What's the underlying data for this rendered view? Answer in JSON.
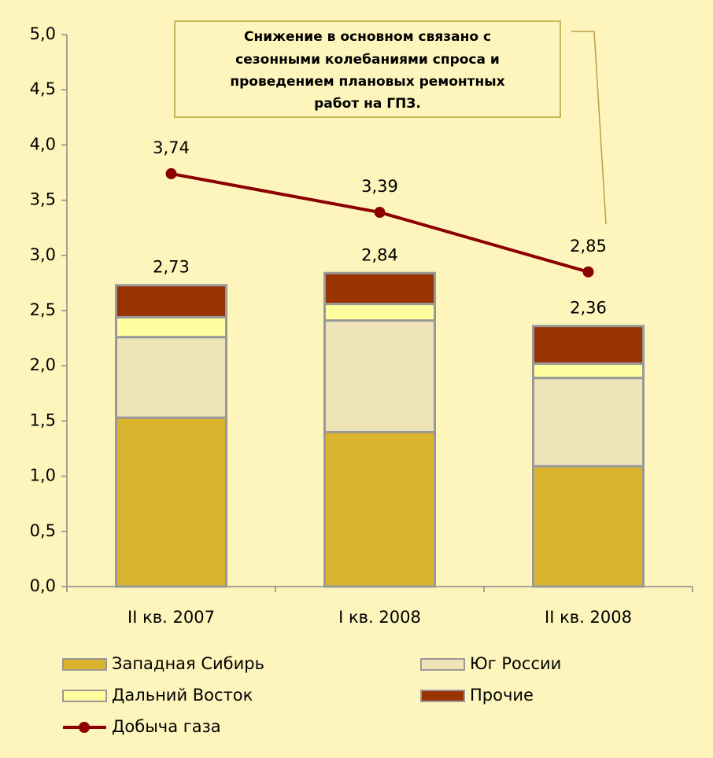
{
  "chart_data": {
    "type": "bar",
    "categories": [
      "II кв. 2007",
      "I кв. 2008",
      "II кв. 2008"
    ],
    "series": [
      {
        "name": "Западная Сибирь",
        "color": "#d9b42c",
        "values": [
          1.53,
          1.4,
          1.09
        ]
      },
      {
        "name": "Юг России",
        "color": "#efe4b8",
        "values": [
          0.73,
          1.01,
          0.8
        ]
      },
      {
        "name": "Дальний Восток",
        "color": "#ffffa0",
        "values": [
          0.18,
          0.15,
          0.13
        ]
      },
      {
        "name": "Прочие",
        "color": "#993300",
        "values": [
          0.29,
          0.28,
          0.34
        ]
      },
      {
        "name": "Добыча газа",
        "type": "line",
        "color": "#8b0000",
        "values": [
          3.74,
          3.39,
          2.85
        ],
        "value_labels": [
          "3,74",
          "3,39",
          "2,85"
        ]
      }
    ],
    "totals": {
      "values": [
        2.73,
        2.84,
        2.36
      ],
      "value_labels": [
        "2,73",
        "2,84",
        "2,36"
      ]
    },
    "annotation": [
      "Снижение в основном связано с",
      "сезонными колебаниями спроса и",
      "проведением плановых ремонтных",
      "работ на ГПЗ."
    ],
    "ylim": [
      0,
      5
    ],
    "yticks": [
      {
        "value": 0,
        "label": "0,0"
      },
      {
        "value": 0.5,
        "label": "0,5"
      },
      {
        "value": 1,
        "label": "1,0"
      },
      {
        "value": 1.5,
        "label": "1,5"
      },
      {
        "value": 2,
        "label": "2,0"
      },
      {
        "value": 2.5,
        "label": "2,5"
      },
      {
        "value": 3,
        "label": "3,0"
      },
      {
        "value": 3.5,
        "label": "3,5"
      },
      {
        "value": 4,
        "label": "4,0"
      },
      {
        "value": 4.5,
        "label": "4,5"
      },
      {
        "value": 5,
        "label": "5,0"
      }
    ]
  }
}
